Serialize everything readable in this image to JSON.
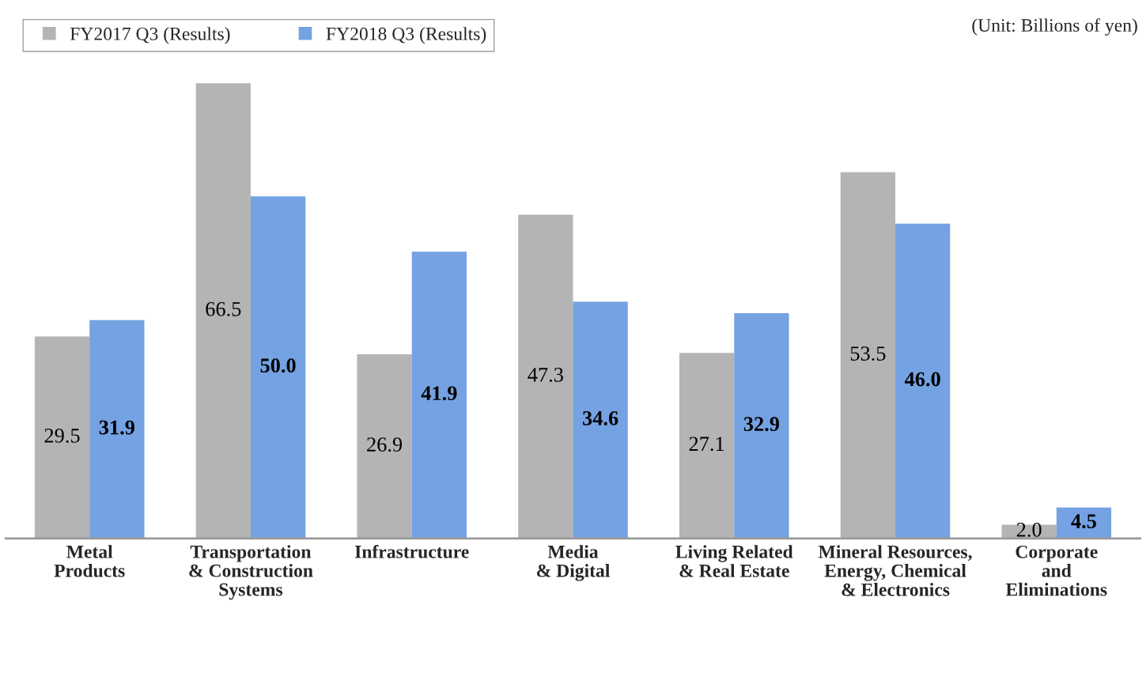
{
  "chart_data": {
    "type": "bar",
    "categories": [
      "Metal\nProducts",
      "Transportation\n& Construction\nSystems",
      "Infrastructure",
      "Media\n& Digital",
      "Living Related\n& Real Estate",
      "Mineral Resources,\nEnergy, Chemical\n& Electronics",
      "Corporate\nand\nEliminations"
    ],
    "series": [
      {
        "name": "FY2017 Q3 (Results)",
        "color": "#b4b4b4",
        "values": [
          29.5,
          66.5,
          26.9,
          47.3,
          27.1,
          53.5,
          2.0
        ],
        "value_labels": [
          "29.5",
          "66.5",
          "26.9",
          "47.3",
          "27.1",
          "53.5",
          "2.0"
        ]
      },
      {
        "name": "FY2018 Q3 (Results)",
        "color": "#74a2e2",
        "values": [
          31.9,
          50.0,
          41.9,
          34.6,
          32.9,
          46.0,
          4.5
        ],
        "value_labels": [
          "31.9",
          "50.0",
          "41.9",
          "34.6",
          "32.9",
          "46.0",
          "4.5"
        ]
      }
    ],
    "annotations": [
      "(Unit: Billions of yen)"
    ],
    "legend": "top left",
    "grid": false
  }
}
